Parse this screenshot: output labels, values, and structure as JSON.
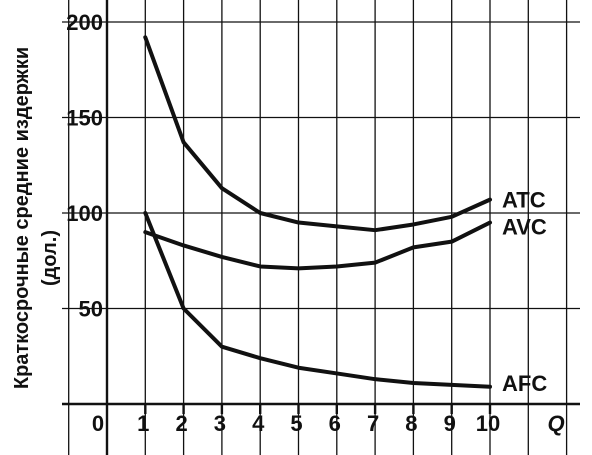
{
  "chart_data": {
    "type": "line",
    "ylabel_line1": "Краткосрочные средние издержки",
    "ylabel_line2": "(дол.)",
    "xlabel": "Q",
    "origin_label": "0",
    "x": [
      1,
      2,
      3,
      4,
      5,
      6,
      7,
      8,
      9,
      10
    ],
    "x_ticks": [
      "1",
      "2",
      "3",
      "4",
      "5",
      "6",
      "7",
      "8",
      "9",
      "10"
    ],
    "y_ticks": [
      "50",
      "100",
      "150",
      "200"
    ],
    "xlim": [
      0,
      11
    ],
    "ylim": [
      0,
      200
    ],
    "grid": true,
    "series": [
      {
        "name": "ATC",
        "values": [
          192,
          137,
          113,
          100,
          95,
          93,
          91,
          94,
          98,
          107
        ]
      },
      {
        "name": "AVC",
        "values": [
          90,
          83,
          77,
          72,
          71,
          72,
          74,
          82,
          85,
          95
        ]
      },
      {
        "name": "AFC",
        "values": [
          100,
          50,
          30,
          24,
          19,
          16,
          13,
          11,
          10,
          9
        ]
      }
    ]
  }
}
